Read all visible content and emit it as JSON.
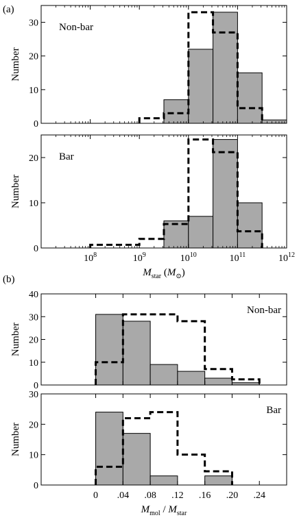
{
  "figure": {
    "part_labels": [
      "(a)",
      "(b)"
    ]
  },
  "colors": {
    "bar_fill": "#a9a9a9",
    "bar_stroke": "#000000",
    "dashed": "#000000"
  },
  "chart_data": [
    {
      "id": "a-nonbar",
      "type": "bar",
      "panel_label": "Non-bar",
      "panel_label_pos": "top-left",
      "ylabel": "Number",
      "xscale": "log",
      "xlim": [
        10000000.0,
        1000000000000.0
      ],
      "ylim": [
        0,
        35
      ],
      "yticks": [
        0,
        10,
        20,
        30
      ],
      "xticks": [
        100000000.0,
        1000000000.0,
        10000000000.0,
        100000000000.0,
        1000000000000.0
      ],
      "xtick_labels": [],
      "bins": [
        {
          "x0": 3160000000.0,
          "x1": 10000000000.0,
          "value": 7
        },
        {
          "x0": 10000000000.0,
          "x1": 31600000000.0,
          "value": 22
        },
        {
          "x0": 31600000000.0,
          "x1": 100000000000.0,
          "value": 33
        },
        {
          "x0": 100000000000.0,
          "x1": 316000000000.0,
          "value": 15
        },
        {
          "x0": 316000000000.0,
          "x1": 1000000000000.0,
          "value": 1
        }
      ],
      "dashed_bins": [
        {
          "x0": 1000000000.0,
          "x1": 3160000000.0,
          "value": 1.5
        },
        {
          "x0": 3160000000.0,
          "x1": 10000000000.0,
          "value": 3
        },
        {
          "x0": 10000000000.0,
          "x1": 31600000000.0,
          "value": 33
        },
        {
          "x0": 31600000000.0,
          "x1": 100000000000.0,
          "value": 27
        },
        {
          "x0": 100000000000.0,
          "x1": 316000000000.0,
          "value": 4.5
        }
      ]
    },
    {
      "id": "a-bar",
      "type": "bar",
      "panel_label": "Bar",
      "panel_label_pos": "top-left",
      "ylabel": "Number",
      "xlabel_main": "M",
      "xlabel_sub": "star",
      "xlabel_unit_pre": "(",
      "xlabel_unit": "M",
      "xlabel_unit_sub": "⊙",
      "xlabel_unit_post": ")",
      "xscale": "log",
      "xlim": [
        10000000.0,
        1000000000000.0
      ],
      "ylim": [
        0,
        25
      ],
      "yticks": [
        0,
        10,
        20
      ],
      "xticks": [
        100000000.0,
        1000000000.0,
        10000000000.0,
        100000000000.0,
        1000000000000.0
      ],
      "xtick_labels": [
        {
          "base": "10",
          "exp": "8"
        },
        {
          "base": "10",
          "exp": "9"
        },
        {
          "base": "10",
          "exp": "10"
        },
        {
          "base": "10",
          "exp": "11"
        },
        {
          "base": "10",
          "exp": "12"
        }
      ],
      "bins": [
        {
          "x0": 3160000000.0,
          "x1": 10000000000.0,
          "value": 6
        },
        {
          "x0": 10000000000.0,
          "x1": 31600000000.0,
          "value": 7
        },
        {
          "x0": 31600000000.0,
          "x1": 100000000000.0,
          "value": 24
        },
        {
          "x0": 100000000000.0,
          "x1": 316000000000.0,
          "value": 10
        }
      ],
      "dashed_bins": [
        {
          "x0": 100000000.0,
          "x1": 1000000000.0,
          "value": 0.7
        },
        {
          "x0": 1000000000.0,
          "x1": 3160000000.0,
          "value": 2
        },
        {
          "x0": 3160000000.0,
          "x1": 10000000000.0,
          "value": 5.3
        },
        {
          "x0": 10000000000.0,
          "x1": 31600000000.0,
          "value": 24
        },
        {
          "x0": 31600000000.0,
          "x1": 100000000000.0,
          "value": 21.2
        },
        {
          "x0": 100000000000.0,
          "x1": 316000000000.0,
          "value": 3.7
        }
      ]
    },
    {
      "id": "b-nonbar",
      "type": "bar",
      "panel_label": "Non-bar",
      "panel_label_pos": "top-right",
      "ylabel": "Number",
      "xscale": "linear",
      "xlim": [
        -0.08,
        0.28
      ],
      "ylim": [
        0,
        40
      ],
      "yticks": [
        0,
        10,
        20,
        30,
        40
      ],
      "xticks": [
        0,
        0.04,
        0.08,
        0.12,
        0.16,
        0.2,
        0.24
      ],
      "xtick_labels": [],
      "bins": [
        {
          "x0": 0.0,
          "x1": 0.04,
          "value": 31
        },
        {
          "x0": 0.04,
          "x1": 0.08,
          "value": 28
        },
        {
          "x0": 0.08,
          "x1": 0.12,
          "value": 9
        },
        {
          "x0": 0.12,
          "x1": 0.16,
          "value": 6
        },
        {
          "x0": 0.16,
          "x1": 0.2,
          "value": 3
        },
        {
          "x0": 0.2,
          "x1": 0.24,
          "value": 1
        }
      ],
      "dashed_bins": [
        {
          "x0": 0.0,
          "x1": 0.04,
          "value": 10
        },
        {
          "x0": 0.04,
          "x1": 0.08,
          "value": 31
        },
        {
          "x0": 0.08,
          "x1": 0.12,
          "value": 31
        },
        {
          "x0": 0.12,
          "x1": 0.16,
          "value": 28
        },
        {
          "x0": 0.16,
          "x1": 0.2,
          "value": 7
        },
        {
          "x0": 0.2,
          "x1": 0.24,
          "value": 2.5
        }
      ]
    },
    {
      "id": "b-bar",
      "type": "bar",
      "panel_label": "Bar",
      "panel_label_pos": "top-right",
      "ylabel": "Number",
      "xlabel_main": "M",
      "xlabel_sub": "mol",
      "xlabel_sep": " / ",
      "xlabel_main2": "M",
      "xlabel_sub2": "star",
      "xscale": "linear",
      "xlim": [
        -0.08,
        0.28
      ],
      "ylim": [
        0,
        30
      ],
      "yticks": [
        0,
        10,
        20,
        30
      ],
      "xticks": [
        0,
        0.04,
        0.08,
        0.12,
        0.16,
        0.2,
        0.24
      ],
      "xtick_labels": [
        "0",
        ".04",
        ".08",
        ".12",
        ".16",
        ".20",
        ".24"
      ],
      "bins": [
        {
          "x0": 0.0,
          "x1": 0.04,
          "value": 24
        },
        {
          "x0": 0.04,
          "x1": 0.08,
          "value": 17
        },
        {
          "x0": 0.08,
          "x1": 0.12,
          "value": 3
        },
        {
          "x0": 0.16,
          "x1": 0.2,
          "value": 3
        }
      ],
      "dashed_bins": [
        {
          "x0": 0.0,
          "x1": 0.04,
          "value": 6
        },
        {
          "x0": 0.04,
          "x1": 0.08,
          "value": 22
        },
        {
          "x0": 0.08,
          "x1": 0.12,
          "value": 24
        },
        {
          "x0": 0.12,
          "x1": 0.16,
          "value": 10
        },
        {
          "x0": 0.16,
          "x1": 0.2,
          "value": 4.5
        }
      ]
    }
  ]
}
